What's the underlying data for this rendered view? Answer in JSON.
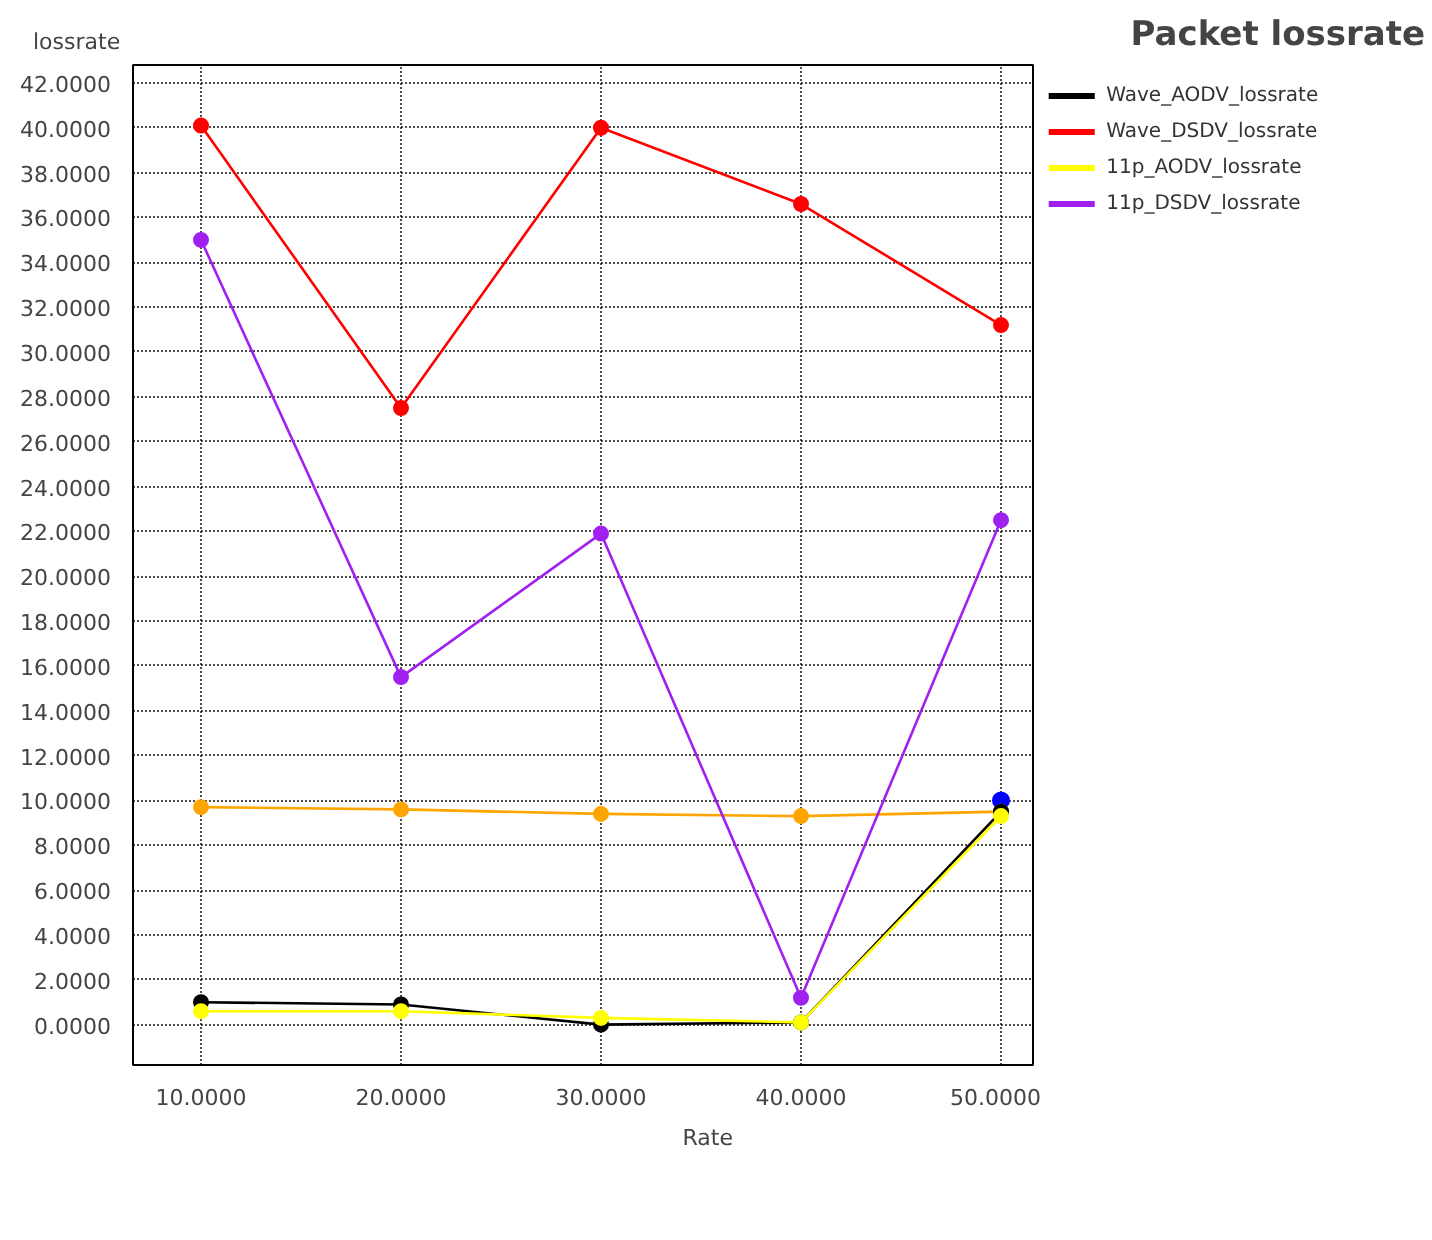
{
  "chart_data": {
    "type": "line",
    "title": "Packet lossrate",
    "xlabel": "Rate",
    "ylabel": "lossrate",
    "x": [
      10,
      20,
      30,
      40,
      50
    ],
    "series": [
      {
        "type": "scatter",
        "color": "#0000ff",
        "x": [
          50
        ],
        "values": [
          10.0
        ]
      },
      {
        "color": "#ffa500",
        "values": [
          9.7,
          9.6,
          9.4,
          9.3,
          9.5
        ]
      },
      {
        "name": "Wave_AODV_lossrate",
        "color": "#000000",
        "values": [
          1.0,
          0.9,
          0.0,
          0.1,
          9.5
        ]
      },
      {
        "name": "Wave_DSDV_lossrate",
        "color": "#ff0000",
        "values": [
          40.1,
          27.5,
          40.0,
          36.6,
          31.2
        ]
      },
      {
        "name": "11p_AODV_lossrate",
        "color": "#ffff00",
        "values": [
          0.6,
          0.6,
          0.3,
          0.1,
          9.3
        ]
      },
      {
        "name": "11p_DSDV_lossrate",
        "color": "#a020f0",
        "values": [
          35.0,
          15.5,
          21.9,
          1.2,
          22.5
        ]
      }
    ],
    "xlim": [
      6.6,
      51.6
    ],
    "ylim": [
      -1.8,
      42.8
    ],
    "xticks": [
      {
        "value": 10,
        "label": "10.0000"
      },
      {
        "value": 20,
        "label": "20.0000"
      },
      {
        "value": 30,
        "label": "30.0000"
      },
      {
        "value": 40,
        "label": "40.0000"
      },
      {
        "value": 50,
        "label": "50.0000"
      }
    ],
    "yticks": [
      {
        "value": 0,
        "label": "0.0000"
      },
      {
        "value": 2,
        "label": "2.0000"
      },
      {
        "value": 4,
        "label": "4.0000"
      },
      {
        "value": 6,
        "label": "6.0000"
      },
      {
        "value": 8,
        "label": "8.0000"
      },
      {
        "value": 10,
        "label": "10.0000"
      },
      {
        "value": 12,
        "label": "12.0000"
      },
      {
        "value": 14,
        "label": "14.0000"
      },
      {
        "value": 16,
        "label": "16.0000"
      },
      {
        "value": 18,
        "label": "18.0000"
      },
      {
        "value": 20,
        "label": "20.0000"
      },
      {
        "value": 22,
        "label": "22.0000"
      },
      {
        "value": 24,
        "label": "24.0000"
      },
      {
        "value": 26,
        "label": "26.0000"
      },
      {
        "value": 28,
        "label": "28.0000"
      },
      {
        "value": 30,
        "label": "30.0000"
      },
      {
        "value": 32,
        "label": "32.0000"
      },
      {
        "value": 34,
        "label": "34.0000"
      },
      {
        "value": 36,
        "label": "36.0000"
      },
      {
        "value": 38,
        "label": "38.0000"
      },
      {
        "value": 40,
        "label": "40.0000"
      },
      {
        "value": 42,
        "label": "42.0000"
      }
    ],
    "grid": true,
    "legend": "top right",
    "marker": "circle",
    "line_style": "solid"
  }
}
